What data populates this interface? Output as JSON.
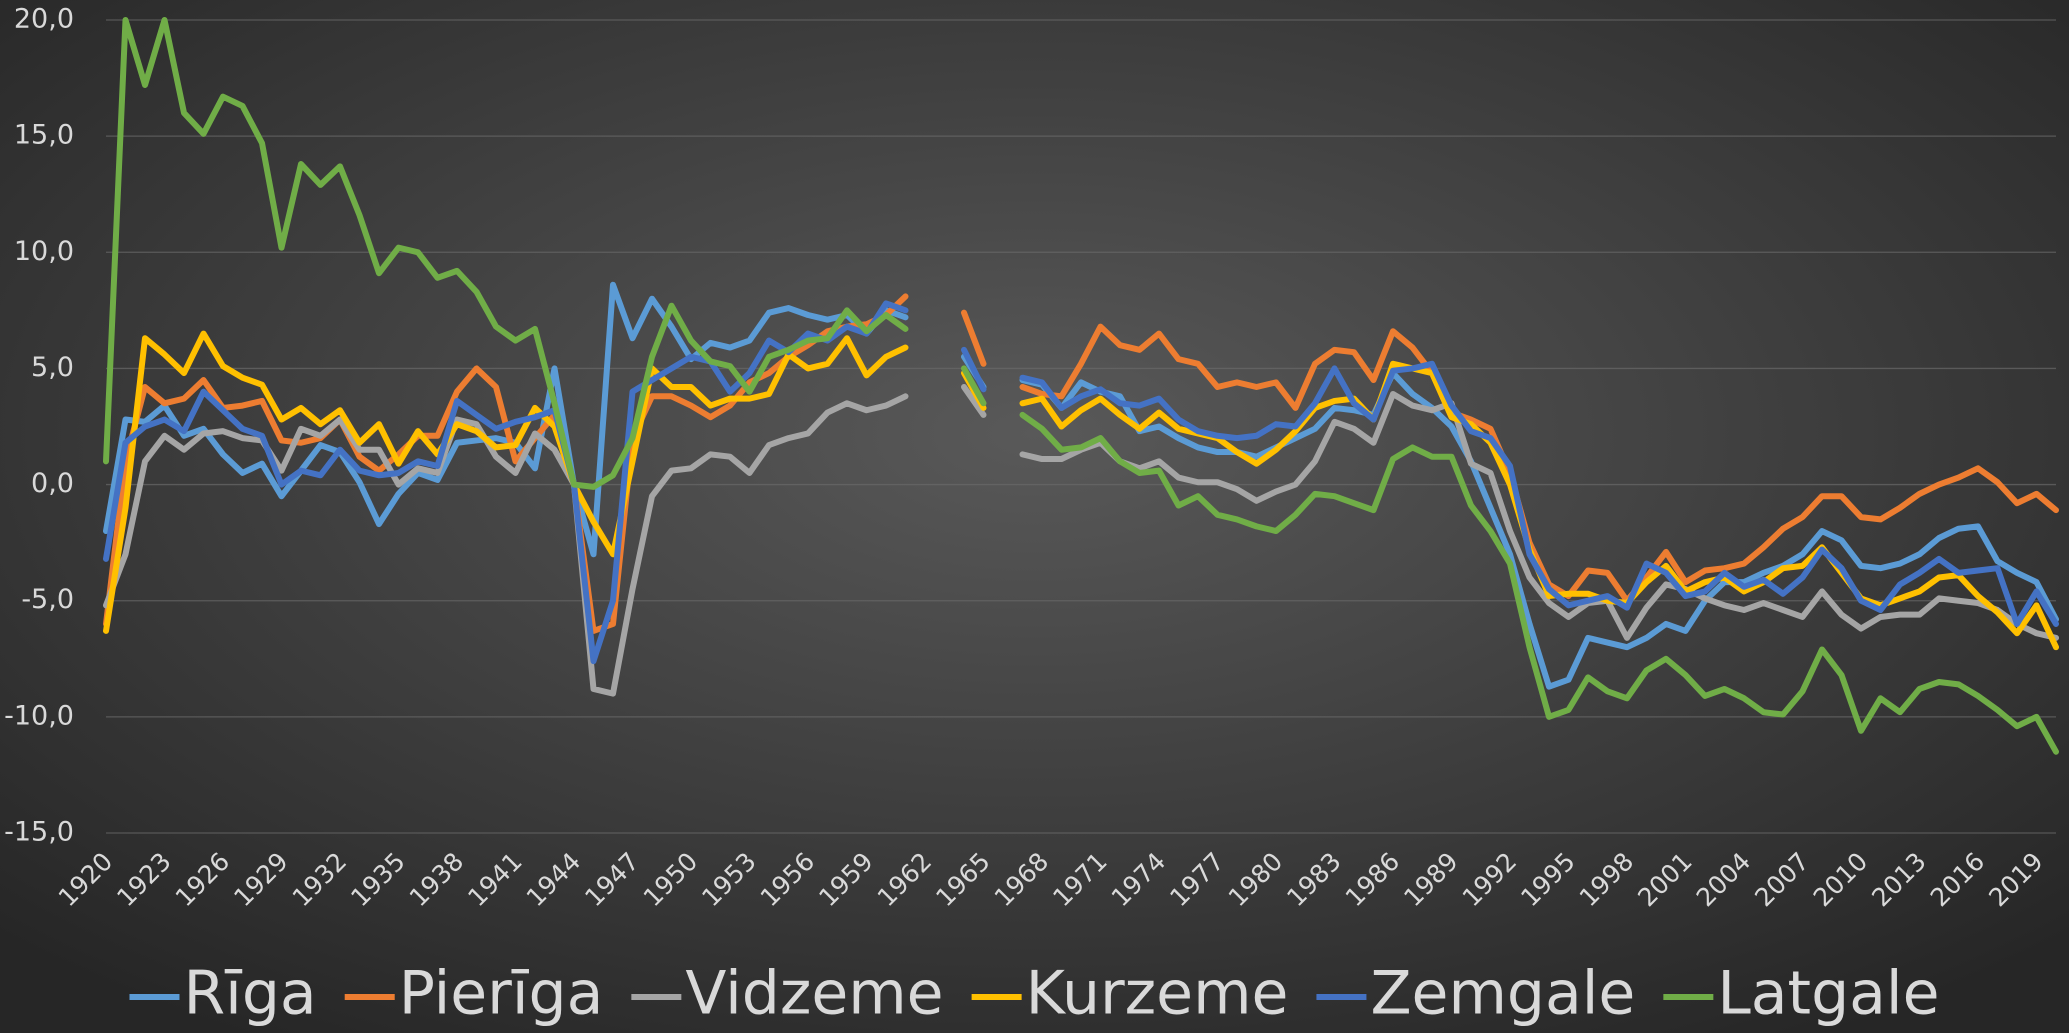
{
  "chart_data": {
    "type": "line",
    "categories": [
      1920,
      null,
      null,
      1923,
      null,
      null,
      1926,
      null,
      null,
      1929,
      null,
      null,
      1932,
      null,
      null,
      1935,
      null,
      null,
      1938,
      null,
      null,
      1941,
      null,
      null,
      1944,
      null,
      null,
      1947,
      null,
      null,
      1950,
      null,
      null,
      1953,
      null,
      null,
      1956,
      null,
      null,
      1959,
      null,
      null,
      1962,
      null,
      null,
      1965,
      null,
      null,
      1968,
      null,
      null,
      1971,
      null,
      null,
      1974,
      null,
      null,
      1977,
      null,
      null,
      1980,
      null,
      null,
      1983,
      null,
      null,
      1986,
      null,
      null,
      1989,
      null,
      null,
      1992,
      null,
      null,
      1995,
      null,
      null,
      1998,
      null,
      null,
      2001,
      null,
      null,
      2004,
      null,
      null,
      2007,
      null,
      null,
      2010,
      null,
      null,
      2013,
      null,
      null,
      2016,
      null,
      null,
      2019,
      null
    ],
    "ylim": [
      -15,
      20
    ],
    "yticks": [
      {
        "value": -15,
        "label": "-15,0"
      },
      {
        "value": -10,
        "label": "-10,0"
      },
      {
        "value": -5,
        "label": "-5,0"
      },
      {
        "value": 0,
        "label": "0,0"
      },
      {
        "value": 5,
        "label": "5,0"
      },
      {
        "value": 10,
        "label": "10,0"
      },
      {
        "value": 15,
        "label": "15,0"
      },
      {
        "value": 20,
        "label": "20,0"
      }
    ],
    "grid": true,
    "legend": "bottom",
    "series": [
      {
        "name": "Rīga",
        "color": "#5b9bd5",
        "values": [
          -2,
          2.8,
          2.7,
          3.4,
          2.1,
          2.4,
          1.3,
          0.5,
          0.9,
          -0.5,
          0.6,
          1.7,
          1.4,
          0.1,
          -1.7,
          -0.4,
          0.5,
          0.2,
          1.8,
          1.9,
          2,
          1.8,
          0.7,
          5,
          0,
          -3,
          8.6,
          6.3,
          8,
          6.8,
          5.4,
          6.1,
          5.9,
          6.2,
          7.4,
          7.6,
          7.3,
          7.1,
          7.3,
          6.5,
          7.5,
          7.2,
          null,
          null,
          5.5,
          4.2,
          null,
          4.5,
          4.3,
          3.3,
          4.4,
          4,
          3.8,
          2.3,
          2.5,
          2,
          1.6,
          1.4,
          1.4,
          1.2,
          1.6,
          2,
          2.4,
          3.3,
          3.2,
          3,
          4.8,
          3.9,
          3.3,
          2.5,
          1,
          -1,
          -3,
          -6,
          -8.7,
          -8.4,
          -6.6,
          -6.8,
          -7,
          -6.6,
          -6,
          -6.3,
          -5,
          -4.2,
          -4.2,
          -3.8,
          -3.5,
          -3,
          -2,
          -2.4,
          -3.5,
          -3.6,
          -3.4,
          -3,
          -2.3,
          -1.9,
          -1.8,
          -3.3,
          -3.8,
          -4.2,
          -5.8
        ]
      },
      {
        "name": "Pierīga",
        "color": "#ed7d31",
        "values": [
          -6,
          1,
          4.2,
          3.5,
          3.7,
          4.5,
          3.3,
          3.4,
          3.6,
          1.9,
          1.8,
          2,
          2.8,
          1.2,
          0.6,
          1.3,
          2.1,
          2.1,
          4,
          5,
          4.2,
          1,
          2,
          3,
          0,
          -6.3,
          -6,
          2,
          3.8,
          3.8,
          3.4,
          2.9,
          3.4,
          4.4,
          4.8,
          5.5,
          6,
          6.6,
          6.8,
          6.9,
          7.3,
          8.1,
          null,
          null,
          7.4,
          5.2,
          null,
          4.2,
          3.9,
          3.8,
          5.2,
          6.8,
          6,
          5.8,
          6.5,
          5.4,
          5.2,
          4.2,
          4.4,
          4.2,
          4.4,
          3.3,
          5.2,
          5.8,
          5.7,
          4.5,
          6.6,
          5.9,
          4.8,
          3.1,
          2.8,
          2.4,
          0.5,
          -2.5,
          -4.3,
          -4.8,
          -3.7,
          -3.8,
          -5,
          -4,
          -2.9,
          -4.2,
          -3.7,
          -3.6,
          -3.4,
          -2.7,
          -1.9,
          -1.4,
          -0.5,
          -0.5,
          -1.4,
          -1.5,
          -1,
          -0.4,
          0,
          0.3,
          0.7,
          0.1,
          -0.8,
          -0.4,
          -1.1
        ]
      },
      {
        "name": "Vidzeme",
        "color": "#a5a5a5",
        "values": [
          -5.2,
          -3,
          1,
          2.1,
          1.5,
          2.2,
          2.3,
          2,
          1.9,
          0.6,
          2.4,
          2.1,
          2.8,
          1.5,
          1.5,
          0,
          0.7,
          0.5,
          2.8,
          2.6,
          1.2,
          0.5,
          2.2,
          1.5,
          0,
          -8.8,
          -9,
          -4.5,
          -0.5,
          0.6,
          0.7,
          1.3,
          1.2,
          0.5,
          1.7,
          2,
          2.2,
          3.1,
          3.5,
          3.2,
          3.4,
          3.8,
          null,
          null,
          4.2,
          3,
          null,
          1.3,
          1.1,
          1.1,
          1.5,
          1.8,
          1,
          0.7,
          1,
          0.3,
          0.1,
          0.1,
          -0.2,
          -0.7,
          -0.3,
          0,
          1,
          2.7,
          2.4,
          1.8,
          3.9,
          3.4,
          3.2,
          3.5,
          0.9,
          0.5,
          -2,
          -4,
          -5.1,
          -5.7,
          -5.1,
          -5,
          -6.6,
          -5.3,
          -4.3,
          -4.5,
          -4.9,
          -5.2,
          -5.4,
          -5.1,
          -5.4,
          -5.7,
          -4.6,
          -5.6,
          -6.2,
          -5.7,
          -5.6,
          -5.6,
          -4.9,
          -5,
          -5.1,
          -5.4,
          -6,
          -6.4,
          -6.6
        ]
      },
      {
        "name": "Kurzeme",
        "color": "#ffc000",
        "values": [
          -6.3,
          -1,
          6.3,
          5.6,
          4.8,
          6.5,
          5.1,
          4.6,
          4.3,
          2.8,
          3.3,
          2.6,
          3.2,
          1.8,
          2.6,
          0.9,
          2.3,
          1.3,
          2.6,
          2.3,
          1.6,
          1.7,
          3.3,
          2.5,
          0,
          -1.6,
          -3,
          1,
          5,
          4.2,
          4.2,
          3.4,
          3.7,
          3.7,
          3.9,
          5.6,
          5,
          5.2,
          6.3,
          4.7,
          5.5,
          5.9,
          null,
          null,
          4.8,
          3.3,
          null,
          3.5,
          3.7,
          2.5,
          3.2,
          3.7,
          3,
          2.4,
          3.1,
          2.4,
          2.2,
          2,
          1.4,
          0.9,
          1.5,
          2.3,
          3.3,
          3.6,
          3.7,
          2.8,
          5.2,
          5,
          4.8,
          2.9,
          2.6,
          1.8,
          0,
          -2.8,
          -4.8,
          -4.7,
          -4.7,
          -5,
          -5.1,
          -4.2,
          -3.5,
          -4.6,
          -4.2,
          -4,
          -4.6,
          -4.2,
          -3.6,
          -3.5,
          -2.7,
          -3.8,
          -4.9,
          -5.2,
          -4.9,
          -4.6,
          -4,
          -3.9,
          -4.8,
          -5.5,
          -6.4,
          -5.2,
          -7
        ]
      },
      {
        "name": "Zemgale",
        "color": "#4472c4",
        "values": [
          -3.2,
          1.8,
          2.5,
          2.8,
          2.3,
          4,
          3.2,
          2.4,
          2.1,
          0,
          0.6,
          0.4,
          1.5,
          0.6,
          0.4,
          0.5,
          1,
          0.8,
          3.6,
          3,
          2.4,
          2.7,
          2.9,
          3.2,
          0,
          -7.6,
          -5,
          4,
          4.5,
          5,
          5.5,
          5.3,
          4,
          4.8,
          6.2,
          5.7,
          6.5,
          6.2,
          6.8,
          6.5,
          7.8,
          7.5,
          null,
          null,
          5.8,
          4.1,
          null,
          4.6,
          4.4,
          3.3,
          3.8,
          4.1,
          3.5,
          3.4,
          3.7,
          2.8,
          2.3,
          2.1,
          2,
          2.1,
          2.6,
          2.5,
          3.5,
          5,
          3.5,
          2.8,
          4.9,
          5,
          5.2,
          3.4,
          2.3,
          2,
          0.8,
          -3,
          -4.5,
          -5.2,
          -5,
          -4.8,
          -5.3,
          -3.4,
          -3.8,
          -4.8,
          -4.6,
          -3.8,
          -4.4,
          -4.1,
          -4.7,
          -4,
          -2.8,
          -3.6,
          -5,
          -5.4,
          -4.3,
          -3.8,
          -3.2,
          -3.8,
          -3.7,
          -3.6,
          -6,
          -4.6,
          -6
        ]
      },
      {
        "name": "Latgale",
        "color": "#70ad47",
        "values": [
          1,
          20,
          17.2,
          20,
          16,
          15.1,
          16.7,
          16.3,
          14.7,
          10.2,
          13.8,
          12.9,
          13.7,
          11.6,
          9.1,
          10.2,
          10,
          8.9,
          9.2,
          8.3,
          6.8,
          6.2,
          6.7,
          3.5,
          0,
          -0.1,
          0.4,
          2,
          5.5,
          7.7,
          6.2,
          5.3,
          5.1,
          4,
          5.5,
          5.8,
          6.2,
          6.3,
          7.5,
          6.6,
          7.3,
          6.7,
          null,
          null,
          5,
          3.5,
          null,
          3,
          2.4,
          1.5,
          1.6,
          2,
          1,
          0.5,
          0.6,
          -0.9,
          -0.5,
          -1.3,
          -1.5,
          -1.8,
          -2,
          -1.3,
          -0.4,
          -0.5,
          -0.8,
          -1.1,
          1.1,
          1.6,
          1.2,
          1.2,
          -0.9,
          -2,
          -3.4,
          -7,
          -10,
          -9.7,
          -8.3,
          -8.9,
          -9.2,
          -8,
          -7.5,
          -8.2,
          -9.1,
          -8.8,
          -9.2,
          -9.8,
          -9.9,
          -8.9,
          -7.1,
          -8.2,
          -10.6,
          -9.2,
          -9.8,
          -8.8,
          -8.5,
          -8.6,
          -9.1,
          -9.7,
          -10.4,
          -10,
          -11.5
        ]
      }
    ]
  }
}
